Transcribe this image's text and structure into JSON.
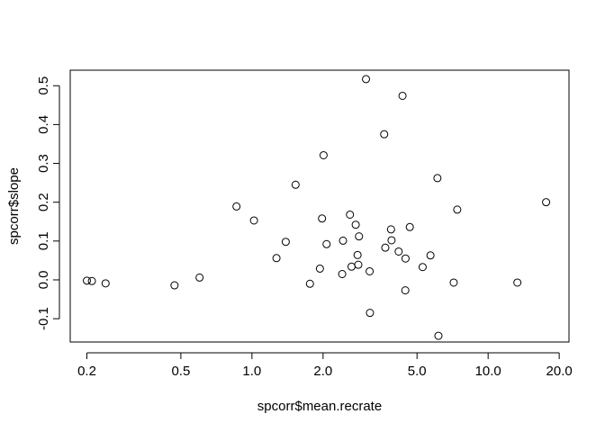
{
  "chart_data": {
    "type": "scatter",
    "title": "",
    "xlabel": "spcorr$mean.recrate",
    "ylabel": "spcorr$slope",
    "x_scale": "log",
    "xlim": [
      0.17,
      22
    ],
    "ylim": [
      -0.16,
      0.54
    ],
    "x_ticks": [
      0.2,
      0.5,
      1.0,
      2.0,
      5.0,
      10.0,
      20.0
    ],
    "x_tick_labels": [
      "0.2",
      "0.5",
      "1.0",
      "2.0",
      "5.0",
      "10.0",
      "20.0"
    ],
    "y_ticks": [
      -0.1,
      0.0,
      0.1,
      0.2,
      0.3,
      0.4,
      0.5
    ],
    "y_tick_labels": [
      "-0.1",
      "0.0",
      "0.1",
      "0.2",
      "0.3",
      "0.4",
      "0.5"
    ],
    "grid": false,
    "legend": "none",
    "marker": "open-circle",
    "points": [
      {
        "x": 0.2,
        "y": -0.002
      },
      {
        "x": 0.21,
        "y": -0.003
      },
      {
        "x": 0.24,
        "y": -0.009
      },
      {
        "x": 0.47,
        "y": -0.014
      },
      {
        "x": 0.6,
        "y": 0.006
      },
      {
        "x": 0.86,
        "y": 0.189
      },
      {
        "x": 1.02,
        "y": 0.153
      },
      {
        "x": 1.27,
        "y": 0.056
      },
      {
        "x": 1.39,
        "y": 0.098
      },
      {
        "x": 1.53,
        "y": 0.245
      },
      {
        "x": 1.76,
        "y": -0.01
      },
      {
        "x": 1.94,
        "y": 0.029
      },
      {
        "x": 1.98,
        "y": 0.158
      },
      {
        "x": 2.01,
        "y": 0.321
      },
      {
        "x": 2.07,
        "y": 0.092
      },
      {
        "x": 2.41,
        "y": 0.015
      },
      {
        "x": 2.43,
        "y": 0.101
      },
      {
        "x": 2.6,
        "y": 0.168
      },
      {
        "x": 2.64,
        "y": 0.034
      },
      {
        "x": 2.75,
        "y": 0.142
      },
      {
        "x": 2.8,
        "y": 0.064
      },
      {
        "x": 2.82,
        "y": 0.039
      },
      {
        "x": 2.84,
        "y": 0.112
      },
      {
        "x": 3.04,
        "y": 0.517
      },
      {
        "x": 3.15,
        "y": 0.022
      },
      {
        "x": 3.16,
        "y": -0.085
      },
      {
        "x": 3.63,
        "y": 0.375
      },
      {
        "x": 3.67,
        "y": 0.083
      },
      {
        "x": 3.88,
        "y": 0.13
      },
      {
        "x": 3.9,
        "y": 0.102
      },
      {
        "x": 4.18,
        "y": 0.073
      },
      {
        "x": 4.34,
        "y": 0.474
      },
      {
        "x": 4.47,
        "y": 0.055
      },
      {
        "x": 4.46,
        "y": -0.027
      },
      {
        "x": 4.66,
        "y": 0.136
      },
      {
        "x": 5.28,
        "y": 0.033
      },
      {
        "x": 5.7,
        "y": 0.063
      },
      {
        "x": 6.1,
        "y": 0.262
      },
      {
        "x": 6.16,
        "y": -0.144
      },
      {
        "x": 7.15,
        "y": -0.007
      },
      {
        "x": 7.4,
        "y": 0.181
      },
      {
        "x": 13.3,
        "y": -0.007
      },
      {
        "x": 17.6,
        "y": 0.2
      }
    ]
  }
}
